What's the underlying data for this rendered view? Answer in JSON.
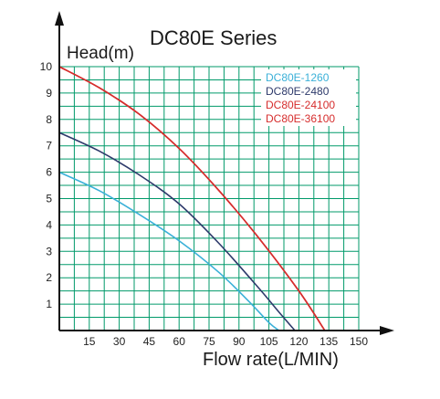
{
  "chart_data": {
    "type": "line",
    "title": "DC80E Series",
    "ylabel": "Head(m)",
    "xlabel": "Flow rate(L/MIN)",
    "xlim": [
      0,
      150
    ],
    "ylim": [
      0,
      10
    ],
    "x_ticks": [
      15,
      30,
      45,
      60,
      75,
      90,
      105,
      120,
      135,
      150
    ],
    "y_ticks": [
      1,
      2,
      3,
      4,
      5,
      6,
      7,
      8,
      9,
      10
    ],
    "grid": true,
    "grid_color": "#009a6a",
    "legend_position": "top-right",
    "series": [
      {
        "name": "DC80E-1260",
        "color": "#3ab0d8",
        "x": [
          0,
          20,
          40,
          60,
          80,
          95,
          105,
          110
        ],
        "y": [
          6,
          5.3,
          4.4,
          3.4,
          2.2,
          1.1,
          0.3,
          0
        ]
      },
      {
        "name": "DC80E-2480",
        "color": "#2e3a6b",
        "x": [
          0,
          20,
          40,
          60,
          80,
          100,
          110,
          118
        ],
        "y": [
          7.5,
          6.8,
          5.9,
          4.8,
          3.3,
          1.6,
          0.7,
          0
        ]
      },
      {
        "name": "DC80E-24100",
        "color": "#d62d2d",
        "x": [
          0,
          20,
          40,
          60,
          80,
          100,
          120,
          133
        ],
        "y": [
          10,
          9.2,
          8.2,
          6.9,
          5.3,
          3.5,
          1.5,
          0
        ]
      },
      {
        "name": "DC80E-36100",
        "color": "#d62d2d",
        "x": [
          0,
          20,
          40,
          60,
          80,
          100,
          120,
          133
        ],
        "y": [
          10,
          9.2,
          8.2,
          6.9,
          5.3,
          3.5,
          1.5,
          0
        ]
      }
    ]
  }
}
